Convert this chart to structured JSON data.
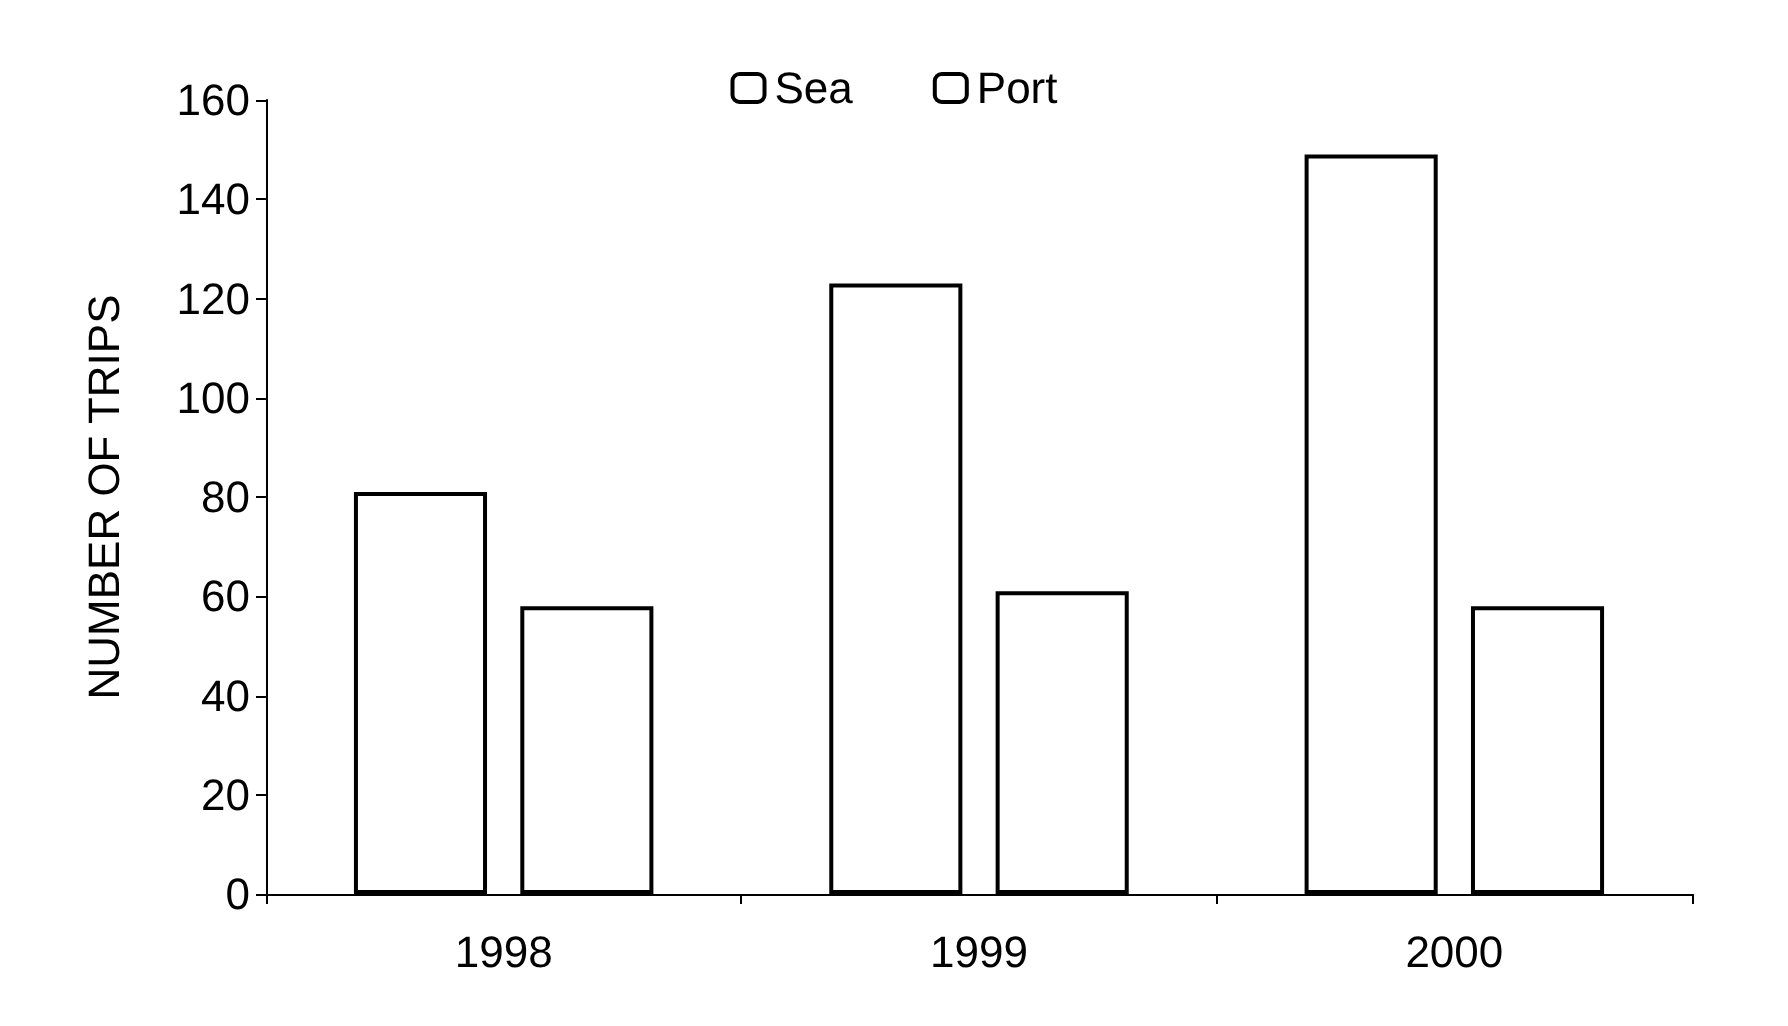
{
  "chart_data": {
    "type": "bar",
    "ylabel": "NUMBER OF TRIPS",
    "categories": [
      "1998",
      "1999",
      "2000"
    ],
    "series": [
      {
        "name": "Sea",
        "color": "#ffffff",
        "values": [
          81,
          123,
          149
        ]
      },
      {
        "name": "Port",
        "color": "#ffffff",
        "values": [
          58,
          61,
          58
        ]
      }
    ],
    "ylim": [
      0,
      160
    ],
    "yticks": [
      0,
      20,
      40,
      60,
      80,
      100,
      120,
      140,
      160
    ],
    "grid": false,
    "legend": "top"
  }
}
